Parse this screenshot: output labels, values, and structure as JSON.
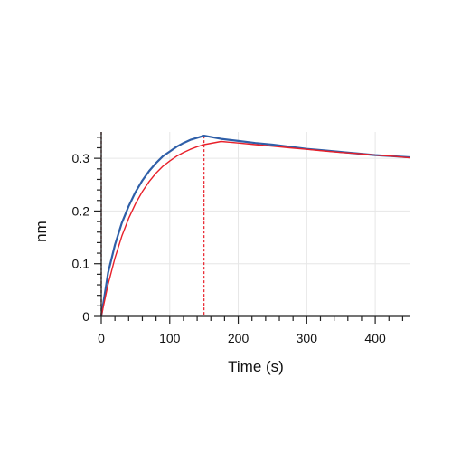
{
  "chart_data": {
    "type": "line",
    "xlabel": "Time (s)",
    "ylabel": "nm",
    "xlim": [
      0,
      450
    ],
    "ylim": [
      0,
      0.35
    ],
    "x_ticks": [
      0,
      100,
      200,
      300,
      400
    ],
    "y_ticks": [
      0,
      0.1,
      0.2,
      0.3
    ],
    "x_tick_labels": [
      "0",
      "100",
      "200",
      "300",
      "400"
    ],
    "y_tick_labels": [
      "0",
      "0.1",
      "0.2",
      "0.3"
    ],
    "grid": true,
    "association_end_time": 150,
    "series": [
      {
        "style": "measured",
        "color": "#2f5fa8",
        "x": [
          0,
          10,
          20,
          30,
          40,
          50,
          60,
          70,
          80,
          90,
          100,
          110,
          120,
          130,
          140,
          150,
          175,
          200,
          225,
          250,
          275,
          300,
          325,
          350,
          375,
          400,
          425,
          450
        ],
        "y": [
          0.0,
          0.083,
          0.136,
          0.177,
          0.209,
          0.236,
          0.258,
          0.276,
          0.291,
          0.304,
          0.313,
          0.322,
          0.329,
          0.335,
          0.339,
          0.343,
          0.337,
          0.333,
          0.329,
          0.326,
          0.322,
          0.318,
          0.315,
          0.312,
          0.309,
          0.306,
          0.304,
          0.302
        ]
      },
      {
        "style": "fit",
        "color": "#e8202a",
        "x": [
          0,
          10,
          20,
          30,
          40,
          50,
          60,
          70,
          80,
          90,
          100,
          110,
          120,
          130,
          140,
          150,
          175,
          200,
          225,
          250,
          275,
          300,
          325,
          350,
          375,
          400,
          425,
          450
        ],
        "y": [
          0.0,
          0.061,
          0.111,
          0.152,
          0.186,
          0.214,
          0.237,
          0.256,
          0.272,
          0.285,
          0.295,
          0.304,
          0.311,
          0.317,
          0.322,
          0.326,
          0.332,
          0.329,
          0.326,
          0.323,
          0.32,
          0.317,
          0.314,
          0.311,
          0.309,
          0.306,
          0.304,
          0.301
        ]
      }
    ]
  }
}
